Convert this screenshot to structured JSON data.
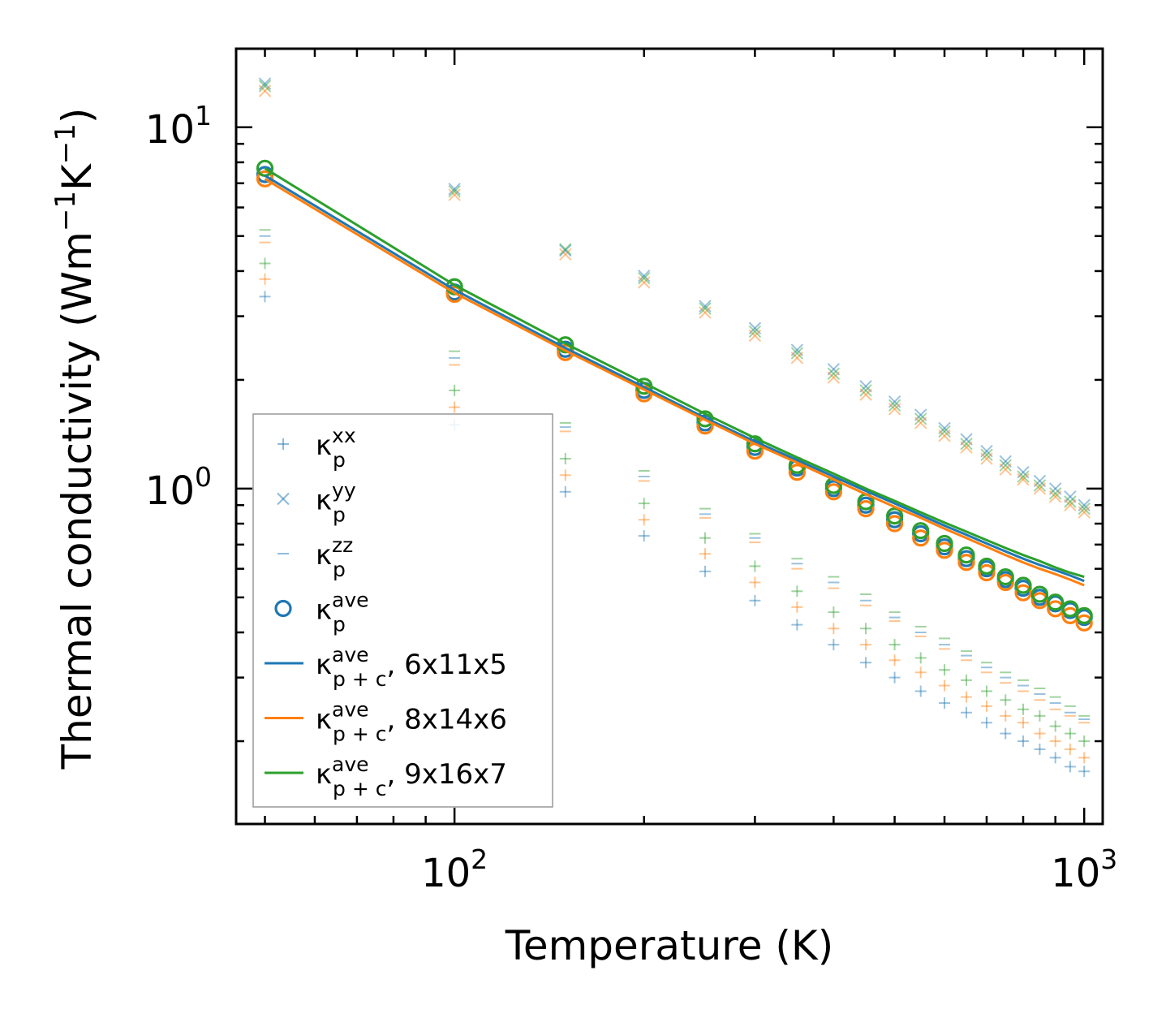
{
  "chart_data": {
    "type": "scatter",
    "title": "",
    "xlabel": "Temperature (K)",
    "ylabel": {
      "base": "Thermal conductivity (Wm",
      "sup1": "−1",
      "mid": "K",
      "sup2": "−1",
      "end": ")"
    },
    "xscale": "log",
    "yscale": "log",
    "xlim": [
      45,
      1070
    ],
    "ylim": [
      0.118,
      16.5
    ],
    "x_ticks": [
      {
        "value": 100,
        "base": "10",
        "exp": "2"
      },
      {
        "value": 1000,
        "base": "10",
        "exp": "3"
      }
    ],
    "y_ticks": [
      {
        "value": 1,
        "base": "10",
        "exp": "0"
      },
      {
        "value": 10,
        "base": "10",
        "exp": "1"
      }
    ],
    "legend_position": "lower-left",
    "colors": {
      "blue": "#1f77b4",
      "orange": "#ff7f0e",
      "green": "#2ca02c"
    },
    "temperatures": [
      50,
      100,
      150,
      200,
      250,
      300,
      350,
      400,
      450,
      500,
      550,
      600,
      650,
      700,
      750,
      800,
      850,
      900,
      950,
      1000
    ],
    "series": [
      {
        "name": "κp xx",
        "kind": "plus",
        "alpha": 0.45,
        "groups": [
          {
            "color": "#1f77b4",
            "values": [
              3.4,
              1.5,
              0.98,
              0.74,
              0.59,
              0.49,
              0.42,
              0.37,
              0.33,
              0.3,
              0.275,
              0.255,
              0.24,
              0.225,
              0.21,
              0.2,
              0.19,
              0.18,
              0.17,
              0.165
            ]
          },
          {
            "color": "#ff7f0e",
            "values": [
              3.8,
              1.68,
              1.09,
              0.82,
              0.66,
              0.55,
              0.47,
              0.41,
              0.37,
              0.335,
              0.31,
              0.285,
              0.265,
              0.25,
              0.235,
              0.225,
              0.21,
              0.2,
              0.19,
              0.18
            ]
          },
          {
            "color": "#2ca02c",
            "values": [
              4.2,
              1.87,
              1.21,
              0.91,
              0.73,
              0.61,
              0.52,
              0.455,
              0.41,
              0.37,
              0.34,
              0.315,
              0.295,
              0.275,
              0.26,
              0.245,
              0.235,
              0.22,
              0.21,
              0.2
            ]
          }
        ]
      },
      {
        "name": "κp yy",
        "kind": "cross",
        "alpha": 0.45,
        "groups": [
          {
            "color": "#1f77b4",
            "values": [
              13.2,
              6.75,
              4.56,
              3.88,
              3.2,
              2.78,
              2.42,
              2.14,
              1.92,
              1.74,
              1.6,
              1.47,
              1.37,
              1.27,
              1.19,
              1.11,
              1.05,
              1.0,
              0.95,
              0.9
            ]
          },
          {
            "color": "#ff7f0e",
            "values": [
              12.6,
              6.5,
              4.45,
              3.72,
              3.07,
              2.65,
              2.3,
              2.03,
              1.82,
              1.66,
              1.52,
              1.4,
              1.3,
              1.21,
              1.13,
              1.06,
              1.0,
              0.95,
              0.9,
              0.86
            ]
          },
          {
            "color": "#2ca02c",
            "values": [
              13.0,
              6.65,
              4.6,
              3.82,
              3.15,
              2.72,
              2.37,
              2.08,
              1.87,
              1.7,
              1.56,
              1.44,
              1.33,
              1.24,
              1.16,
              1.08,
              1.02,
              0.97,
              0.92,
              0.88
            ]
          }
        ]
      },
      {
        "name": "κp zz",
        "kind": "dash",
        "alpha": 0.45,
        "groups": [
          {
            "color": "#1f77b4",
            "values": [
              5.0,
              2.3,
              1.48,
              1.08,
              0.85,
              0.73,
              0.62,
              0.55,
              0.49,
              0.44,
              0.4,
              0.37,
              0.345,
              0.32,
              0.3,
              0.285,
              0.27,
              0.255,
              0.24,
              0.23
            ]
          },
          {
            "color": "#ff7f0e",
            "values": [
              4.8,
              2.2,
              1.44,
              1.05,
              0.83,
              0.71,
              0.6,
              0.53,
              0.475,
              0.43,
              0.39,
              0.36,
              0.335,
              0.31,
              0.29,
              0.275,
              0.26,
              0.245,
              0.235,
              0.225
            ]
          },
          {
            "color": "#2ca02c",
            "values": [
              5.2,
              2.4,
              1.52,
              1.12,
              0.88,
              0.75,
              0.64,
              0.57,
              0.51,
              0.455,
              0.415,
              0.385,
              0.355,
              0.33,
              0.31,
              0.295,
              0.28,
              0.265,
              0.25,
              0.235
            ]
          }
        ]
      },
      {
        "name": "κp ave",
        "kind": "circle",
        "alpha": 1.0,
        "groups": [
          {
            "color": "#1f77b4",
            "values": [
              7.4,
              3.5,
              2.43,
              1.87,
              1.52,
              1.3,
              1.14,
              1.0,
              0.9,
              0.82,
              0.75,
              0.69,
              0.64,
              0.6,
              0.56,
              0.53,
              0.5,
              0.48,
              0.46,
              0.44
            ]
          },
          {
            "color": "#ff7f0e",
            "values": [
              7.2,
              3.45,
              2.38,
              1.83,
              1.49,
              1.27,
              1.11,
              0.98,
              0.88,
              0.8,
              0.73,
              0.675,
              0.625,
              0.585,
              0.55,
              0.515,
              0.49,
              0.465,
              0.445,
              0.425
            ]
          },
          {
            "color": "#2ca02c",
            "values": [
              7.7,
              3.62,
              2.5,
              1.92,
              1.56,
              1.33,
              1.16,
              1.02,
              0.92,
              0.84,
              0.765,
              0.705,
              0.655,
              0.61,
              0.57,
              0.54,
              0.51,
              0.485,
              0.465,
              0.445
            ]
          }
        ]
      },
      {
        "name": "κp+c ave, 6x11x5",
        "kind": "line",
        "color": "#1f77b4",
        "values": [
          7.35,
          3.55,
          2.45,
          1.91,
          1.57,
          1.35,
          1.2,
          1.08,
          0.985,
          0.91,
          0.845,
          0.79,
          0.745,
          0.705,
          0.67,
          0.64,
          0.615,
          0.595,
          0.575,
          0.555
        ]
      },
      {
        "name": "κp+c ave, 8x14x6",
        "kind": "line",
        "color": "#ff7f0e",
        "values": [
          7.2,
          3.48,
          2.41,
          1.88,
          1.55,
          1.33,
          1.18,
          1.06,
          0.965,
          0.89,
          0.83,
          0.775,
          0.73,
          0.69,
          0.655,
          0.625,
          0.6,
          0.58,
          0.56,
          0.54
        ]
      },
      {
        "name": "κp+c ave, 9x16x7",
        "kind": "line",
        "color": "#2ca02c",
        "values": [
          7.7,
          3.66,
          2.52,
          1.96,
          1.61,
          1.38,
          1.22,
          1.1,
          1.0,
          0.925,
          0.86,
          0.805,
          0.76,
          0.72,
          0.685,
          0.655,
          0.63,
          0.605,
          0.585,
          0.57
        ]
      }
    ],
    "legend": [
      {
        "kind": "plus",
        "color": "#1f77b4",
        "base": "κ",
        "sup": "xx",
        "sub": "p",
        "suffix": ""
      },
      {
        "kind": "cross",
        "color": "#1f77b4",
        "base": "κ",
        "sup": "yy",
        "sub": "p",
        "suffix": ""
      },
      {
        "kind": "dash",
        "color": "#1f77b4",
        "base": "κ",
        "sup": "zz",
        "sub": "p",
        "suffix": ""
      },
      {
        "kind": "circle",
        "color": "#1f77b4",
        "base": "κ",
        "sup": "ave",
        "sub": "p",
        "suffix": ""
      },
      {
        "kind": "line",
        "color": "#1f77b4",
        "base": "κ",
        "sup": "ave",
        "sub": "p + c",
        "suffix": ", 6x11x5"
      },
      {
        "kind": "line",
        "color": "#ff7f0e",
        "base": "κ",
        "sup": "ave",
        "sub": "p + c",
        "suffix": ", 8x14x6"
      },
      {
        "kind": "line",
        "color": "#2ca02c",
        "base": "κ",
        "sup": "ave",
        "sub": "p + c",
        "suffix": ", 9x16x7"
      }
    ]
  }
}
